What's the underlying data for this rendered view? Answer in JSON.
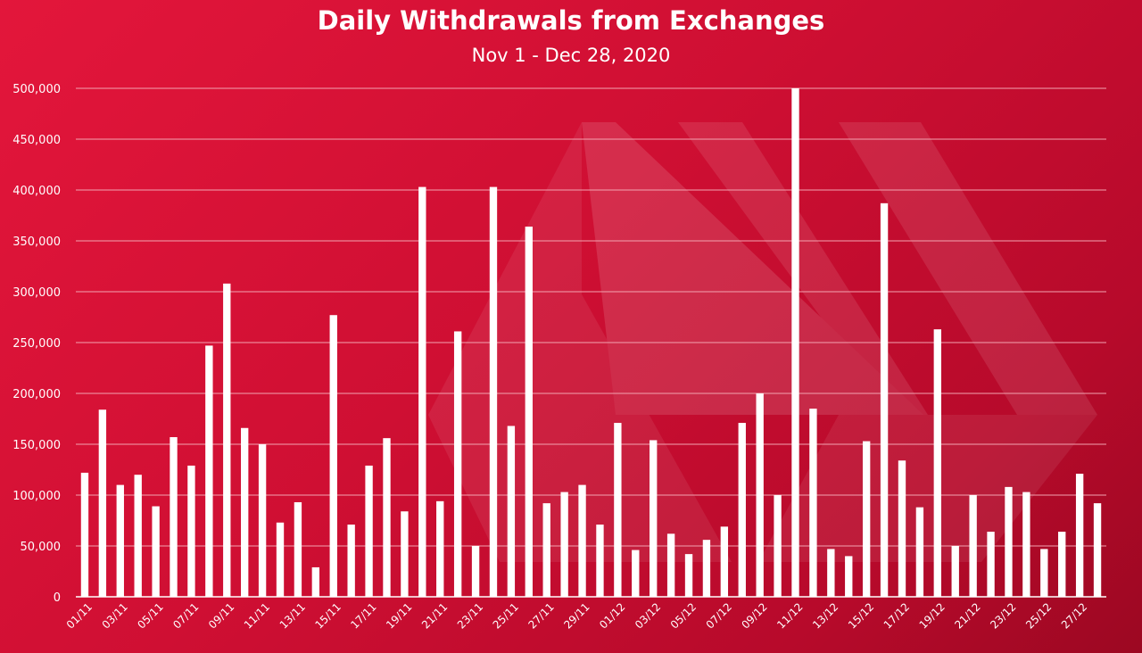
{
  "chart_data": {
    "type": "bar",
    "title": "Daily Withdrawals from Exchanges",
    "subtitle": "Nov 1 - Dec 28, 2020",
    "xlabel": "",
    "ylabel": "",
    "ylim": [
      0,
      500000
    ],
    "yticks": [
      0,
      50000,
      100000,
      150000,
      200000,
      250000,
      300000,
      350000,
      400000,
      450000,
      500000
    ],
    "ytick_labels": [
      "0",
      "50,000",
      "100,000",
      "150,000",
      "200,000",
      "250,000",
      "300,000",
      "350,000",
      "400,000",
      "450,000",
      "500,000"
    ],
    "grid": true,
    "legend": "none",
    "categories": [
      "01/11",
      "02/11",
      "03/11",
      "04/11",
      "05/11",
      "06/11",
      "07/11",
      "08/11",
      "09/11",
      "10/11",
      "11/11",
      "12/11",
      "13/11",
      "14/11",
      "15/11",
      "16/11",
      "17/11",
      "18/11",
      "19/11",
      "20/11",
      "21/11",
      "22/11",
      "23/11",
      "24/11",
      "25/11",
      "26/11",
      "27/11",
      "28/11",
      "29/11",
      "30/11",
      "01/12",
      "02/12",
      "03/12",
      "04/12",
      "05/12",
      "06/12",
      "07/12",
      "08/12",
      "09/12",
      "10/12",
      "11/12",
      "12/12",
      "13/12",
      "14/12",
      "15/12",
      "16/12",
      "17/12",
      "18/12",
      "19/12",
      "20/12",
      "21/12",
      "22/12",
      "23/12",
      "24/12",
      "25/12",
      "26/12",
      "27/12",
      "28/12"
    ],
    "xtick_labels": [
      "01/11",
      "03/11",
      "05/11",
      "07/11",
      "09/11",
      "11/11",
      "13/11",
      "15/11",
      "17/11",
      "19/11",
      "21/11",
      "23/11",
      "25/11",
      "27/11",
      "29/11",
      "01/12",
      "03/12",
      "05/12",
      "07/12",
      "09/12",
      "11/12",
      "13/12",
      "15/12",
      "17/12",
      "19/12",
      "21/12",
      "23/12",
      "25/12",
      "27/12"
    ],
    "values": [
      122000,
      184000,
      110000,
      120000,
      89000,
      157000,
      129000,
      247000,
      308000,
      166000,
      150000,
      73000,
      93000,
      29000,
      277000,
      71000,
      129000,
      156000,
      84000,
      403000,
      94000,
      261000,
      50000,
      403000,
      168000,
      364000,
      92000,
      103000,
      110000,
      71000,
      171000,
      46000,
      154000,
      62000,
      42000,
      56000,
      69000,
      171000,
      200000,
      100000,
      500000,
      185000,
      47000,
      40000,
      153000,
      387000,
      134000,
      88000,
      263000,
      50000,
      100000,
      64000,
      108000,
      103000,
      47000,
      64000,
      121000,
      92000
    ],
    "bar_color": "#ffffff",
    "gridline_color": "#f2a3b0"
  }
}
